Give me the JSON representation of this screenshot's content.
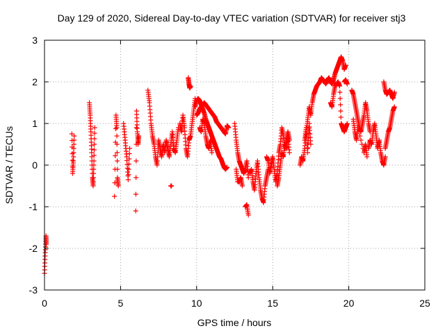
{
  "chart_data": {
    "type": "scatter",
    "title": "Day 129 of 2020, Sidereal Day-to-day VTEC variation (SDTVAR) for receiver stj3",
    "xlabel": "GPS time / hours",
    "ylabel": "SDTVAR / TECUs",
    "xlim": [
      0,
      25
    ],
    "ylim": [
      -3,
      3
    ],
    "xticks": [
      0,
      5,
      10,
      15,
      20,
      25
    ],
    "yticks": [
      -3,
      -2,
      -1,
      0,
      1,
      2,
      3
    ],
    "grid": true,
    "marker": "+",
    "color": "#ff0000",
    "series": [
      {
        "name": "SDTVAR",
        "segments": [
          {
            "x": [
              0.0,
              0.05,
              0.1,
              0.12
            ],
            "y": [
              -2.6,
              -2.1,
              -1.7,
              -1.9
            ]
          },
          {
            "x": [
              1.8,
              1.85,
              1.9,
              1.95
            ],
            "y": [
              0.75,
              -0.2,
              0.1,
              0.7
            ]
          },
          {
            "x": [
              2.95,
              3.0,
              3.05,
              3.1,
              3.15,
              3.2,
              3.25,
              3.3
            ],
            "y": [
              1.5,
              1.2,
              0.8,
              0.3,
              -0.3,
              -0.5,
              0.1,
              0.9
            ]
          },
          {
            "x": [
              4.6,
              4.7,
              4.75,
              4.8,
              4.85
            ],
            "y": [
              -0.75,
              1.2,
              0.9,
              -0.3,
              -0.5
            ]
          },
          {
            "x": [
              5.2,
              5.3,
              5.4,
              5.5,
              5.6
            ],
            "y": [
              1.0,
              0.6,
              0.2,
              -0.35,
              0.4
            ]
          },
          {
            "x": [
              6.0,
              6.05,
              6.1,
              6.15,
              6.2
            ],
            "y": [
              -1.1,
              1.3,
              0.8,
              0.5,
              0.7
            ]
          },
          {
            "x": [
              6.8,
              6.9,
              7.0,
              7.1,
              7.2,
              7.3,
              7.4,
              7.5,
              7.6,
              7.7,
              7.8,
              7.9,
              8.0,
              8.1,
              8.2,
              8.3,
              8.4,
              8.5,
              8.6,
              8.7,
              8.8
            ],
            "y": [
              1.8,
              1.5,
              1.0,
              0.7,
              0.5,
              0.2,
              0.0,
              0.6,
              0.4,
              0.2,
              0.5,
              0.3,
              0.6,
              0.4,
              0.2,
              0.5,
              0.8,
              0.4,
              0.3,
              0.6,
              0.9
            ]
          },
          {
            "x": [
              8.3,
              8.35
            ],
            "y": [
              -0.5,
              -0.5
            ]
          },
          {
            "x": [
              8.9,
              9.0,
              9.1,
              9.2,
              9.3,
              9.4,
              9.5,
              9.6,
              9.7,
              9.8,
              9.9
            ],
            "y": [
              1.0,
              0.8,
              1.2,
              0.9,
              0.4,
              0.2,
              0.6,
              0.7,
              1.0,
              1.3,
              1.6
            ]
          },
          {
            "x": [
              9.45,
              9.5,
              9.55,
              9.6
            ],
            "y": [
              2.1,
              1.95,
              1.85,
              1.9
            ]
          },
          {
            "x": [
              9.9,
              10.0,
              10.1,
              10.2,
              10.3,
              10.4,
              10.5,
              10.6,
              10.7,
              10.8,
              10.9,
              11.0,
              11.1,
              11.2,
              11.3,
              11.4,
              11.5,
              11.6,
              11.7,
              11.8,
              11.9,
              12.0
            ],
            "y": [
              1.4,
              1.55,
              1.6,
              1.55,
              1.45,
              1.35,
              1.25,
              1.1,
              1.0,
              0.9,
              0.8,
              0.7,
              0.6,
              0.5,
              0.4,
              0.3,
              0.2,
              0.15,
              0.05,
              -0.05,
              -0.1,
              -0.05
            ]
          },
          {
            "x": [
              10.0,
              10.1,
              10.2,
              10.3,
              10.4,
              10.5,
              10.6,
              10.7,
              10.8,
              10.9,
              11.0,
              11.1,
              11.2,
              11.3,
              11.4,
              11.5,
              11.6,
              11.7,
              11.8,
              11.9,
              12.0,
              12.1
            ],
            "y": [
              1.2,
              1.25,
              1.35,
              1.4,
              1.45,
              1.5,
              1.45,
              1.4,
              1.35,
              1.3,
              1.25,
              1.2,
              1.15,
              1.05,
              1.0,
              0.95,
              0.9,
              0.85,
              0.8,
              0.75,
              0.95,
              0.9
            ]
          },
          {
            "x": [
              10.2,
              10.3,
              10.4,
              10.5,
              10.6,
              10.7,
              10.8,
              10.9,
              11.0
            ],
            "y": [
              0.9,
              0.8,
              1.1,
              1.0,
              0.7,
              0.5,
              0.4,
              0.6,
              0.3
            ]
          },
          {
            "x": [
              12.5,
              12.6,
              12.7,
              12.8,
              12.9,
              13.0,
              13.1,
              13.2,
              13.3,
              13.4
            ],
            "y": [
              1.0,
              0.6,
              0.3,
              0.1,
              0.0,
              -0.1,
              -0.2,
              -0.1,
              0.1,
              -0.3
            ]
          },
          {
            "x": [
              12.6,
              12.7,
              12.8,
              12.9,
              13.0
            ],
            "y": [
              -0.1,
              -0.4,
              -0.4,
              -0.3,
              -0.5
            ]
          },
          {
            "x": [
              13.2,
              13.3,
              13.4
            ],
            "y": [
              -1.0,
              -0.95,
              -1.2
            ]
          },
          {
            "x": [
              13.5,
              13.6,
              13.7,
              13.8,
              13.9,
              14.0,
              14.1,
              14.2,
              14.3,
              14.4,
              14.5,
              14.6,
              14.7
            ],
            "y": [
              -0.2,
              -0.1,
              -0.4,
              -0.6,
              -0.2,
              0.1,
              -0.3,
              -0.6,
              -0.8,
              -0.9,
              -0.5,
              -0.3,
              -0.1
            ]
          },
          {
            "x": [
              14.6,
              14.7,
              14.8,
              14.9,
              15.0,
              15.1,
              15.2,
              15.3,
              15.4,
              15.5,
              15.6,
              15.7,
              15.8,
              15.9,
              16.0,
              16.1
            ],
            "y": [
              0.2,
              0.1,
              -0.2,
              0.0,
              0.2,
              -0.1,
              -0.4,
              -0.2,
              0.3,
              0.5,
              0.9,
              0.7,
              0.4,
              0.6,
              0.8,
              0.6
            ]
          },
          {
            "x": [
              15.3,
              15.4,
              15.5,
              15.6,
              15.7,
              15.8,
              15.9,
              16.0,
              16.1
            ],
            "y": [
              -0.5,
              -0.3,
              0.0,
              0.3,
              0.2,
              0.5,
              0.4,
              0.7,
              0.3
            ]
          },
          {
            "x": [
              16.8,
              16.9,
              17.0,
              17.1,
              17.2,
              17.3,
              17.4,
              17.5,
              17.6,
              17.7,
              17.8,
              17.9,
              18.0,
              18.1,
              18.2,
              18.3,
              18.4,
              18.5,
              18.6,
              18.7,
              18.8,
              18.9,
              19.0,
              19.1,
              19.2,
              19.3,
              19.4,
              19.5,
              19.6,
              19.7,
              19.8
            ],
            "y": [
              0.0,
              0.2,
              0.1,
              0.4,
              0.8,
              1.1,
              1.4,
              1.2,
              1.5,
              1.7,
              1.8,
              1.9,
              1.95,
              2.0,
              2.1,
              2.05,
              2.0,
              1.95,
              2.05,
              2.1,
              2.0,
              1.95,
              2.05,
              2.2,
              2.3,
              2.4,
              2.5,
              2.6,
              2.5,
              2.3,
              2.4
            ]
          },
          {
            "x": [
              17.1,
              17.2,
              17.3,
              17.4,
              17.5
            ],
            "y": [
              0.6,
              0.9,
              0.3,
              1.0,
              0.5
            ]
          },
          {
            "x": [
              18.8,
              18.9,
              19.0,
              19.1,
              19.2,
              19.3,
              19.4,
              19.5,
              19.6,
              19.7,
              19.8,
              19.9
            ],
            "y": [
              1.5,
              1.4,
              1.7,
              1.9,
              1.95,
              2.0,
              1.9,
              1.0,
              0.9,
              0.8,
              0.9,
              1.0
            ]
          },
          {
            "x": [
              19.7,
              19.8,
              19.9
            ],
            "y": [
              2.0,
              2.05,
              1.95
            ]
          },
          {
            "x": [
              20.2,
              20.3,
              20.4,
              20.5,
              20.6,
              20.7,
              20.8,
              20.9,
              21.0,
              21.1,
              21.2,
              21.3,
              21.4
            ],
            "y": [
              1.8,
              1.7,
              1.5,
              1.3,
              1.1,
              0.9,
              0.8,
              1.0,
              1.2,
              1.5,
              1.3,
              1.0,
              0.8
            ]
          },
          {
            "x": [
              20.3,
              20.4,
              20.5,
              20.6,
              21.0,
              21.1,
              21.2
            ],
            "y": [
              1.1,
              0.8,
              0.6,
              0.9,
              0.3,
              0.5,
              0.2
            ]
          },
          {
            "x": [
              21.3,
              21.4,
              21.5,
              21.6,
              21.7,
              21.8,
              21.9,
              22.0,
              22.1,
              22.2,
              22.3,
              22.4
            ],
            "y": [
              0.4,
              0.6,
              0.5,
              0.8,
              1.0,
              0.7,
              0.4,
              0.6,
              0.3,
              0.1,
              0.0,
              0.2
            ]
          },
          {
            "x": [
              22.3,
              22.4,
              22.5,
              22.6,
              22.7,
              22.8,
              22.9,
              23.0
            ],
            "y": [
              2.0,
              1.8,
              1.7,
              1.75,
              1.8,
              1.7,
              1.6,
              1.75
            ]
          },
          {
            "x": [
              22.4,
              22.5,
              22.6,
              22.7,
              22.8,
              22.9,
              23.0
            ],
            "y": [
              0.4,
              0.6,
              0.8,
              0.9,
              1.1,
              1.3,
              1.4
            ]
          }
        ]
      }
    ]
  }
}
